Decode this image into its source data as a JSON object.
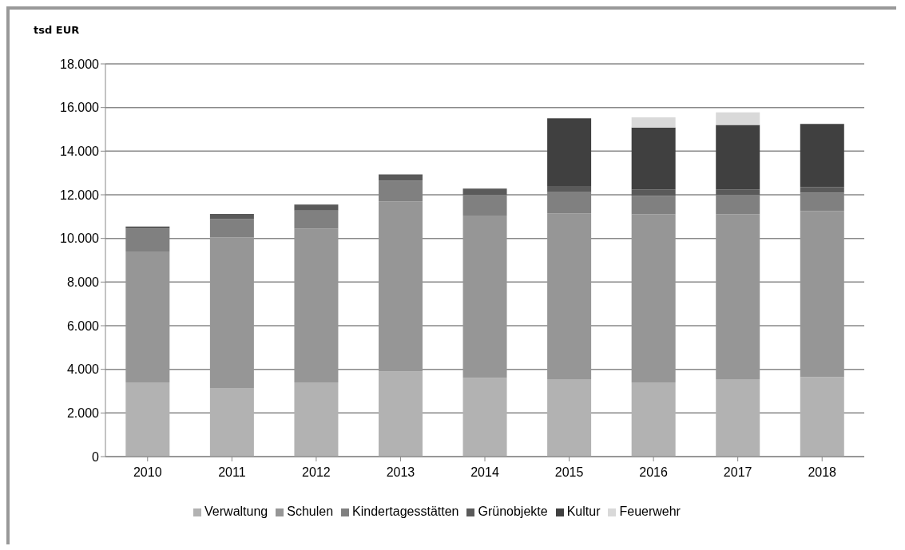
{
  "chart_data": {
    "type": "bar",
    "ylabel": "tsd EUR",
    "stacked": true,
    "categories": [
      "2010",
      "2011",
      "2012",
      "2013",
      "2014",
      "2015",
      "2016",
      "2017",
      "2018"
    ],
    "series": [
      {
        "name": "Verwaltung",
        "color": "#b2b2b2",
        "values": [
          3400,
          3150,
          3400,
          3900,
          3600,
          3550,
          3400,
          3550,
          3650
        ]
      },
      {
        "name": "Schulen",
        "color": "#969696",
        "values": [
          6000,
          6900,
          7050,
          7800,
          7450,
          7600,
          7700,
          7550,
          7600
        ]
      },
      {
        "name": "Kindertagesstätten",
        "color": "#808080",
        "values": [
          1050,
          830,
          830,
          950,
          950,
          1000,
          850,
          900,
          850
        ]
      },
      {
        "name": "Grünobjekte",
        "color": "#5a5a5a",
        "values": [
          100,
          240,
          270,
          280,
          280,
          250,
          300,
          250,
          250
        ]
      },
      {
        "name": "Kultur",
        "color": "#404040",
        "values": [
          null,
          null,
          null,
          null,
          null,
          3100,
          2830,
          2950,
          2900
        ]
      },
      {
        "name": "Feuerwehr",
        "color": "#d9d9d9",
        "values": [
          null,
          null,
          null,
          null,
          null,
          null,
          470,
          580,
          null
        ]
      }
    ],
    "ylim": [
      0,
      18000
    ],
    "yticks": [
      {
        "value": 0,
        "label": "0"
      },
      {
        "value": 2000,
        "label": "2.000"
      },
      {
        "value": 4000,
        "label": "4.000"
      },
      {
        "value": 6000,
        "label": "6.000"
      },
      {
        "value": 8000,
        "label": "8.000"
      },
      {
        "value": 10000,
        "label": "10.000"
      },
      {
        "value": 12000,
        "label": "12.000"
      },
      {
        "value": 14000,
        "label": "14.000"
      },
      {
        "value": 16000,
        "label": "16.000"
      },
      {
        "value": 18000,
        "label": "18.000"
      }
    ],
    "grid": "y",
    "legend": "bottom"
  }
}
